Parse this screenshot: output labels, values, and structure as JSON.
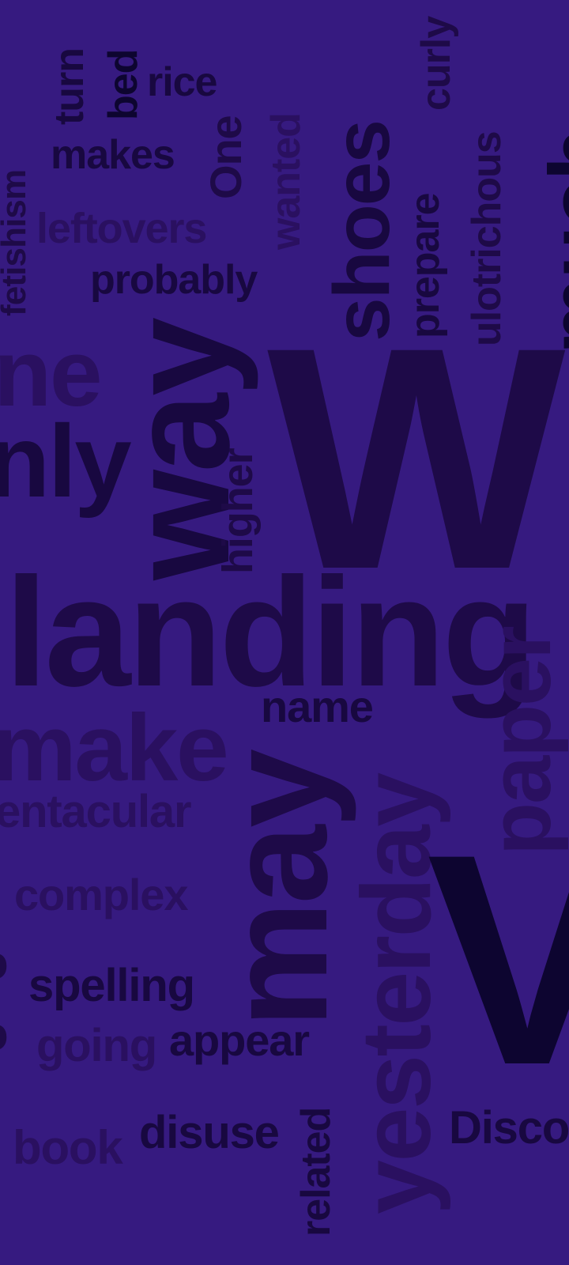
{
  "background": "#361a80",
  "word_colors": [
    "#1e0a48",
    "#180840",
    "#0d0530",
    "#2a1060",
    "#22105a"
  ],
  "words": {
    "fetishism": "fetishism",
    "turn": "turn",
    "bed": "bed",
    "rice": "rice",
    "makes": "makes",
    "one": "One",
    "wanted": "wanted",
    "shoes": "shoes",
    "curly": "curly",
    "prepare": "prepare",
    "ulotrichous": "ulotrichous",
    "leftovers": "leftovers",
    "probably": "probably",
    "way": "way",
    "ne": "ne",
    "nly": "nly",
    "higher": "higher",
    "big_w": "W",
    "landing": "landing",
    "paper": "paper",
    "name": "name",
    "make": "make",
    "may": "may",
    "yesterday": "yesterday",
    "tentacular": "entacular",
    "complex": "complex",
    "big_v": "V",
    "spelling": "spelling",
    "going": "going",
    "appear": "appear",
    "related": "related",
    "book": "book",
    "disuse": "disuse",
    "disco": "Disco",
    "edge_right_top": "much",
    "edge_left_mid": "o",
    "edge_left_low": "o"
  }
}
